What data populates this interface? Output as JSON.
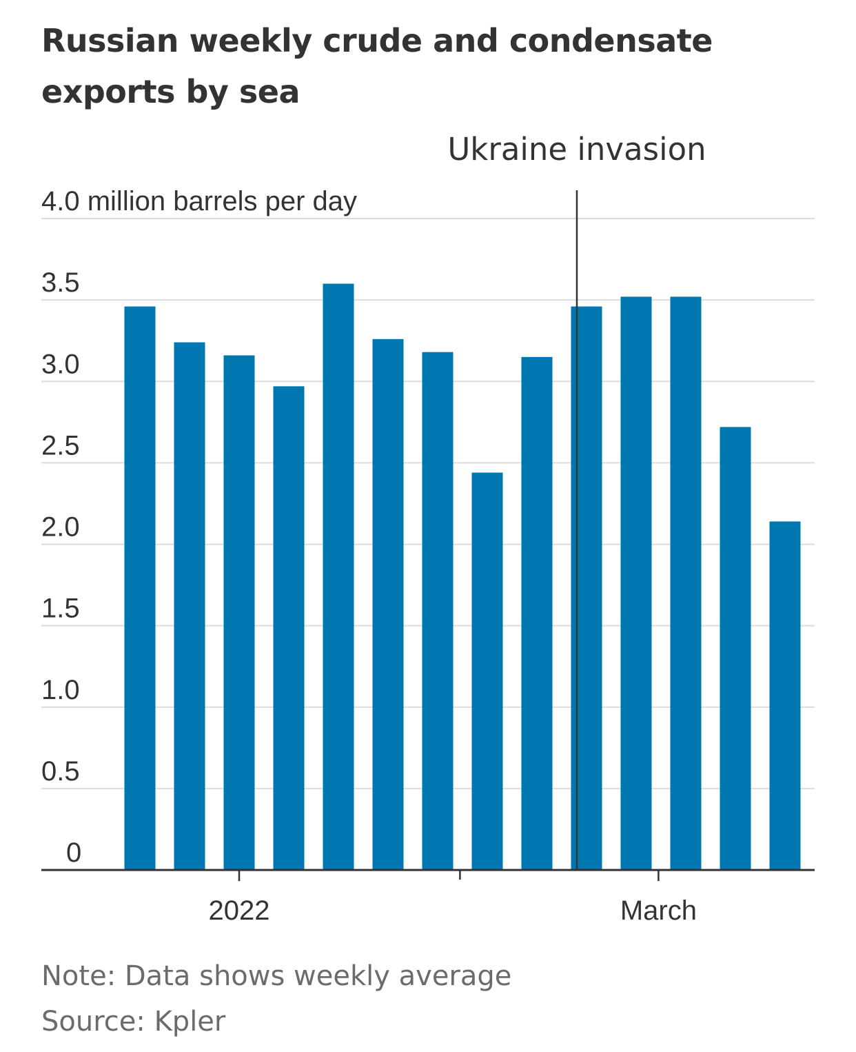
{
  "chart_data": {
    "type": "bar",
    "title": "Russian weekly crude and condensate exports by sea",
    "ylabel": "million barrels per day",
    "ylim": [
      0,
      4.0
    ],
    "yticks": [
      {
        "value": 0,
        "label": "0"
      },
      {
        "value": 0.5,
        "label": "0.5"
      },
      {
        "value": 1.0,
        "label": "1.0"
      },
      {
        "value": 1.5,
        "label": "1.5"
      },
      {
        "value": 2.0,
        "label": "2.0"
      },
      {
        "value": 2.5,
        "label": "2.5"
      },
      {
        "value": 3.0,
        "label": "3.0"
      },
      {
        "value": 3.5,
        "label": "3.5"
      },
      {
        "value": 4.0,
        "label": "4.0 million barrels per day"
      }
    ],
    "values": [
      3.46,
      3.24,
      3.16,
      2.97,
      3.6,
      3.26,
      3.18,
      2.44,
      3.15,
      3.46,
      3.52,
      3.52,
      2.72,
      2.14
    ],
    "x_labels": [
      {
        "label": "2022",
        "position": 2.0
      },
      {
        "label": "March",
        "position": 10.45
      }
    ],
    "minor_ticks": [
      6.45
    ],
    "annotation": {
      "label": "Ukraine invasion",
      "position": 9.0
    },
    "grid": true,
    "bar_color": "#0077b0",
    "note": "Note: Data shows weekly average",
    "source": "Source: Kpler"
  }
}
